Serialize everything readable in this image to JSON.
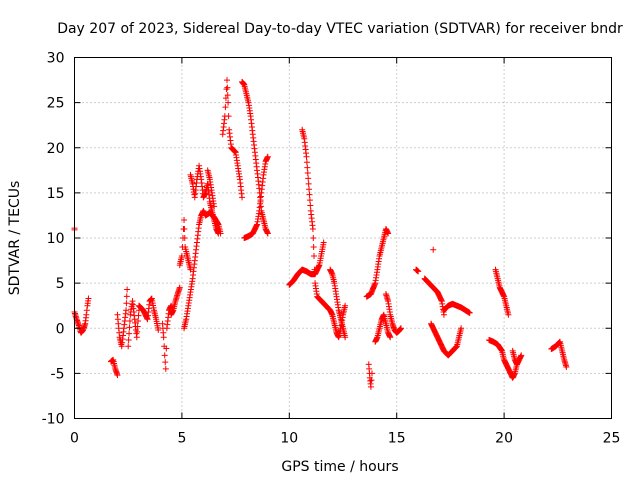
{
  "chart_data": {
    "type": "scatter",
    "title": "Day 207 of 2023, Sidereal Day-to-day VTEC variation (SDTVAR) for receiver bndr",
    "xlabel": "GPS time / hours",
    "ylabel": "SDTVAR / TECUs",
    "xlim": [
      0,
      25
    ],
    "ylim": [
      -10,
      30
    ],
    "xticks": [
      0,
      5,
      10,
      15,
      20,
      25
    ],
    "yticks": [
      -10,
      -5,
      0,
      5,
      10,
      15,
      20,
      25,
      30
    ],
    "xtick_labels": [
      "0",
      "5",
      "10",
      "15",
      "20",
      "25"
    ],
    "ytick_labels": [
      "-10",
      "-5",
      "0",
      "5",
      "10",
      "15",
      "20",
      "25",
      "30"
    ],
    "grid": true,
    "marker": "plus",
    "series_color": "#ff0000",
    "segments": [
      [
        [
          0.0,
          10.9
        ],
        [
          0.0,
          11.1
        ]
      ],
      [
        [
          0.0,
          1.8
        ],
        [
          0.1,
          1.0
        ],
        [
          0.2,
          0.3
        ],
        [
          0.3,
          -0.5
        ],
        [
          0.4,
          -0.2
        ],
        [
          0.5,
          0.5
        ],
        [
          0.55,
          1.5
        ],
        [
          0.6,
          2.5
        ],
        [
          0.65,
          3.3
        ]
      ],
      [
        [
          1.7,
          -3.7
        ],
        [
          1.8,
          -3.5
        ],
        [
          1.9,
          -4.5
        ],
        [
          2.0,
          -5.2
        ]
      ],
      [
        [
          2.0,
          1.5
        ],
        [
          2.1,
          -1.0
        ],
        [
          2.2,
          -2.0
        ],
        [
          2.3,
          0.0
        ],
        [
          2.4,
          2.0
        ],
        [
          2.45,
          4.3
        ]
      ],
      [
        [
          2.5,
          -2.0
        ],
        [
          2.6,
          1.5
        ],
        [
          2.7,
          3.0
        ],
        [
          2.8,
          1.0
        ],
        [
          2.9,
          -1.0
        ],
        [
          3.0,
          2.0
        ]
      ],
      [
        [
          3.0,
          2.5
        ],
        [
          3.2,
          2.0
        ],
        [
          3.4,
          1.0
        ],
        [
          3.5,
          3.0
        ],
        [
          3.6,
          3.3
        ],
        [
          3.7,
          2.0
        ],
        [
          3.8,
          1.0
        ],
        [
          3.9,
          -0.2
        ]
      ],
      [
        [
          4.1,
          0.5
        ],
        [
          4.15,
          -1.0
        ],
        [
          4.2,
          -3.0
        ],
        [
          4.25,
          -4.5
        ],
        [
          4.3,
          0.0
        ],
        [
          4.4,
          2.0
        ],
        [
          4.5,
          2.5
        ]
      ],
      [
        [
          4.5,
          1.5
        ],
        [
          4.6,
          2.0
        ],
        [
          4.7,
          3.0
        ],
        [
          4.8,
          3.8
        ],
        [
          4.9,
          4.5
        ]
      ],
      [
        [
          4.9,
          7.0
        ],
        [
          5.0,
          8.0
        ],
        [
          5.05,
          10.0
        ],
        [
          5.1,
          12.0
        ],
        [
          5.15,
          9.0
        ],
        [
          5.2,
          8.5
        ],
        [
          5.3,
          7.5
        ],
        [
          5.4,
          6.5
        ]
      ],
      [
        [
          5.1,
          0.0
        ],
        [
          5.2,
          1.0
        ],
        [
          5.3,
          2.5
        ],
        [
          5.4,
          4.0
        ],
        [
          5.5,
          5.5
        ],
        [
          5.6,
          7.5
        ],
        [
          5.7,
          9.5
        ],
        [
          5.8,
          11.5
        ],
        [
          5.9,
          12.5
        ],
        [
          6.0,
          13.0
        ],
        [
          6.1,
          12.5
        ],
        [
          6.3,
          12.8
        ],
        [
          6.5,
          12.3
        ],
        [
          6.7,
          11.5
        ],
        [
          6.8,
          10.5
        ]
      ],
      [
        [
          5.4,
          17.0
        ],
        [
          5.5,
          16.0
        ],
        [
          5.6,
          14.5
        ],
        [
          5.7,
          16.5
        ],
        [
          5.8,
          18.0
        ],
        [
          5.9,
          16.5
        ],
        [
          6.0,
          14.5
        ],
        [
          6.1,
          15.0
        ],
        [
          6.2,
          16.0
        ]
      ],
      [
        [
          6.2,
          16.0
        ],
        [
          6.3,
          14.0
        ],
        [
          6.4,
          13.0
        ],
        [
          6.5,
          12.0
        ],
        [
          6.6,
          11.0
        ],
        [
          6.7,
          10.5
        ]
      ],
      [
        [
          6.2,
          17.5
        ],
        [
          6.3,
          16.5
        ],
        [
          6.4,
          15.0
        ],
        [
          6.5,
          13.5
        ]
      ],
      [
        [
          6.9,
          21.5
        ],
        [
          7.0,
          23.5
        ],
        [
          7.05,
          25.5
        ],
        [
          7.1,
          27.5
        ],
        [
          7.15,
          25.0
        ],
        [
          7.2,
          22.0
        ],
        [
          7.3,
          20.0
        ],
        [
          7.5,
          19.5
        ]
      ],
      [
        [
          7.5,
          19.5
        ],
        [
          7.6,
          18.0
        ],
        [
          7.7,
          16.5
        ],
        [
          7.8,
          14.5
        ]
      ],
      [
        [
          7.8,
          27.3
        ],
        [
          7.9,
          27.0
        ],
        [
          8.0,
          26.0
        ],
        [
          8.1,
          25.0
        ],
        [
          8.2,
          23.5
        ],
        [
          8.3,
          21.5
        ],
        [
          8.4,
          19.5
        ],
        [
          8.5,
          17.5
        ],
        [
          8.6,
          15.5
        ],
        [
          8.7,
          13.0
        ],
        [
          8.8,
          12.0
        ],
        [
          8.9,
          11.0
        ],
        [
          9.0,
          10.5
        ]
      ],
      [
        [
          7.9,
          10.0
        ],
        [
          8.1,
          10.2
        ],
        [
          8.3,
          10.5
        ],
        [
          8.5,
          11.5
        ],
        [
          8.6,
          13.0
        ],
        [
          8.7,
          15.0
        ],
        [
          8.8,
          17.0
        ],
        [
          8.9,
          18.5
        ],
        [
          9.0,
          19.0
        ]
      ],
      [
        [
          10.0,
          4.8
        ],
        [
          10.2,
          5.3
        ],
        [
          10.4,
          6.0
        ],
        [
          10.6,
          6.5
        ],
        [
          10.8,
          6.3
        ],
        [
          11.0,
          6.0
        ],
        [
          11.2,
          6.0
        ],
        [
          11.4,
          7.0
        ],
        [
          11.6,
          9.5
        ]
      ],
      [
        [
          10.6,
          22.0
        ],
        [
          10.7,
          21.0
        ],
        [
          10.8,
          19.0
        ],
        [
          10.9,
          16.0
        ],
        [
          11.0,
          13.0
        ],
        [
          11.1,
          11.0
        ],
        [
          11.15,
          8.0
        ],
        [
          11.2,
          5.0
        ],
        [
          11.3,
          3.5
        ],
        [
          11.5,
          3.0
        ],
        [
          11.7,
          2.5
        ],
        [
          11.9,
          2.0
        ],
        [
          12.0,
          1.5
        ]
      ],
      [
        [
          11.9,
          6.5
        ],
        [
          12.0,
          6.0
        ],
        [
          12.1,
          5.0
        ],
        [
          12.2,
          3.5
        ],
        [
          12.3,
          2.0
        ],
        [
          12.4,
          1.0
        ],
        [
          12.5,
          0.0
        ],
        [
          12.6,
          -1.0
        ]
      ],
      [
        [
          12.0,
          1.5
        ],
        [
          12.1,
          0.5
        ],
        [
          12.2,
          -0.5
        ],
        [
          12.3,
          -1.0
        ],
        [
          12.4,
          0.0
        ],
        [
          12.5,
          1.5
        ],
        [
          12.6,
          2.5
        ]
      ],
      [
        [
          13.6,
          3.5
        ],
        [
          13.8,
          3.8
        ],
        [
          14.0,
          5.0
        ],
        [
          14.1,
          6.5
        ],
        [
          14.2,
          8.0
        ],
        [
          14.3,
          9.0
        ],
        [
          14.4,
          10.0
        ],
        [
          14.5,
          11.0
        ],
        [
          14.6,
          10.5
        ]
      ],
      [
        [
          13.7,
          -4.0
        ],
        [
          13.75,
          -5.5
        ],
        [
          13.8,
          -6.5
        ],
        [
          13.85,
          -5.0
        ]
      ],
      [
        [
          14.0,
          -1.5
        ],
        [
          14.1,
          -1.0
        ],
        [
          14.2,
          0.0
        ],
        [
          14.3,
          1.0
        ],
        [
          14.4,
          1.5
        ],
        [
          14.5,
          0.5
        ],
        [
          14.6,
          -0.5
        ],
        [
          14.7,
          -1.0
        ]
      ],
      [
        [
          14.5,
          3.8
        ],
        [
          14.6,
          3.0
        ],
        [
          14.7,
          1.5
        ],
        [
          14.8,
          0.5
        ],
        [
          14.9,
          -0.2
        ],
        [
          15.0,
          -0.5
        ],
        [
          15.1,
          -0.3
        ],
        [
          15.2,
          0.0
        ]
      ],
      [
        [
          15.9,
          6.5
        ],
        [
          16.0,
          6.3
        ]
      ],
      [
        [
          16.3,
          5.5
        ],
        [
          16.5,
          5.0
        ],
        [
          16.7,
          4.5
        ],
        [
          16.9,
          4.0
        ],
        [
          17.1,
          3.0
        ],
        [
          17.2,
          1.5
        ]
      ],
      [
        [
          16.7,
          8.7
        ]
      ],
      [
        [
          16.6,
          0.5
        ],
        [
          16.8,
          -0.5
        ],
        [
          17.0,
          -1.5
        ],
        [
          17.2,
          -2.5
        ],
        [
          17.4,
          -3.0
        ],
        [
          17.6,
          -2.5
        ],
        [
          17.8,
          -2.0
        ],
        [
          17.9,
          -1.0
        ],
        [
          18.0,
          0.0
        ]
      ],
      [
        [
          17.2,
          2.0
        ],
        [
          17.4,
          2.5
        ],
        [
          17.6,
          2.7
        ],
        [
          17.8,
          2.5
        ],
        [
          18.0,
          2.3
        ],
        [
          18.2,
          2.0
        ],
        [
          18.4,
          1.7
        ]
      ],
      [
        [
          19.3,
          -1.3
        ],
        [
          19.5,
          -1.5
        ],
        [
          19.7,
          -1.8
        ],
        [
          19.9,
          -2.5
        ],
        [
          20.0,
          -3.5
        ],
        [
          20.1,
          -4.0
        ],
        [
          20.2,
          -4.5
        ],
        [
          20.3,
          -5.0
        ],
        [
          20.4,
          -5.5
        ],
        [
          20.5,
          -5.0
        ],
        [
          20.6,
          -4.0
        ],
        [
          20.7,
          -3.5
        ],
        [
          20.8,
          -3.0
        ]
      ],
      [
        [
          19.6,
          6.5
        ],
        [
          19.7,
          5.5
        ],
        [
          19.8,
          4.5
        ],
        [
          19.9,
          4.0
        ],
        [
          20.0,
          3.5
        ],
        [
          20.1,
          2.5
        ],
        [
          20.2,
          1.5
        ]
      ],
      [
        [
          20.4,
          -2.5
        ],
        [
          20.5,
          -3.5
        ],
        [
          20.6,
          -4.0
        ]
      ],
      [
        [
          22.2,
          -2.3
        ],
        [
          22.4,
          -2.0
        ],
        [
          22.6,
          -1.5
        ],
        [
          22.7,
          -2.5
        ],
        [
          22.8,
          -3.5
        ],
        [
          22.9,
          -4.3
        ]
      ]
    ]
  }
}
